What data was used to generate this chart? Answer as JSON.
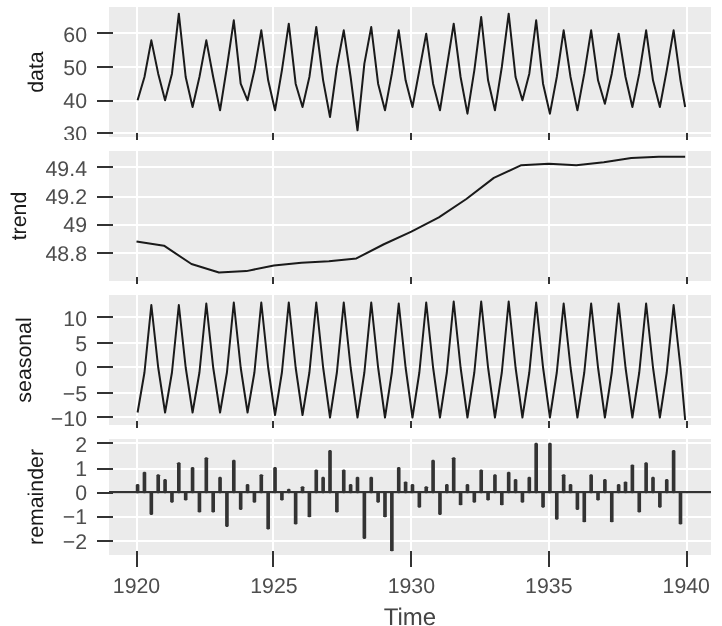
{
  "chart_data": [
    {
      "type": "line",
      "ylabel": "data",
      "color": "#1a1a1a",
      "grid": true,
      "tick_labels": "y",
      "xlim": [
        1919,
        1940.9
      ],
      "xticks": [
        1920,
        1925,
        1930,
        1935,
        1940
      ],
      "ylim": [
        29,
        68
      ],
      "yticks": [
        30,
        40,
        50,
        60
      ],
      "x": [
        1920.04,
        1920.29,
        1920.54,
        1920.79,
        1921.04,
        1921.29,
        1921.54,
        1921.79,
        1922.04,
        1922.29,
        1922.54,
        1922.79,
        1923.04,
        1923.29,
        1923.54,
        1923.79,
        1924.04,
        1924.29,
        1924.54,
        1924.79,
        1925.04,
        1925.29,
        1925.54,
        1925.79,
        1926.04,
        1926.29,
        1926.54,
        1926.79,
        1927.04,
        1927.29,
        1927.54,
        1927.79,
        1928.04,
        1928.29,
        1928.54,
        1928.79,
        1929.04,
        1929.29,
        1929.54,
        1929.79,
        1930.04,
        1930.29,
        1930.54,
        1930.79,
        1931.04,
        1931.29,
        1931.54,
        1931.79,
        1932.04,
        1932.29,
        1932.54,
        1932.79,
        1933.04,
        1933.29,
        1933.54,
        1933.79,
        1934.04,
        1934.29,
        1934.54,
        1934.79,
        1935.04,
        1935.29,
        1935.54,
        1935.79,
        1936.04,
        1936.29,
        1936.54,
        1936.79,
        1937.04,
        1937.29,
        1937.54,
        1937.79,
        1938.04,
        1938.29,
        1938.54,
        1938.79,
        1939.04,
        1939.29,
        1939.54,
        1939.79,
        1939.96
      ],
      "values": [
        40,
        47,
        58,
        48,
        40,
        48,
        66,
        47,
        38,
        47,
        58,
        47,
        37,
        50,
        64,
        45,
        40,
        49,
        61,
        46,
        37,
        49,
        63,
        45,
        38,
        47,
        62,
        46,
        35,
        50,
        61,
        47,
        31,
        51,
        62,
        45,
        37,
        48,
        61,
        46,
        38,
        49,
        60,
        45,
        37,
        50,
        63,
        47,
        36,
        49,
        65,
        46,
        37,
        50,
        66,
        47,
        40,
        48,
        64,
        45,
        36,
        47,
        61,
        47,
        37,
        48,
        61,
        46,
        39,
        48,
        60,
        47,
        38,
        48,
        61,
        46,
        38,
        49,
        61,
        46,
        38
      ]
    },
    {
      "type": "line",
      "ylabel": "trend",
      "color": "#1a1a1a",
      "grid": true,
      "tick_labels": "y",
      "xlim": [
        1919,
        1940.9
      ],
      "xticks": [
        1920,
        1925,
        1930,
        1935,
        1940
      ],
      "ylim": [
        48.6,
        49.52
      ],
      "yticks": [
        48.8,
        49.0,
        49.2,
        49.4
      ],
      "x": [
        1920,
        1921,
        1922,
        1923,
        1924,
        1925,
        1926,
        1927,
        1928,
        1929,
        1930,
        1931,
        1932,
        1933,
        1934,
        1935,
        1936,
        1937,
        1938,
        1939,
        1939.96
      ],
      "values": [
        48.88,
        48.85,
        48.72,
        48.66,
        48.67,
        48.71,
        48.73,
        48.74,
        48.76,
        48.86,
        48.95,
        49.05,
        49.18,
        49.33,
        49.42,
        49.43,
        49.42,
        49.44,
        49.47,
        49.48,
        49.48
      ]
    },
    {
      "type": "line",
      "ylabel": "seasonal",
      "color": "#1a1a1a",
      "grid": true,
      "tick_labels": "y",
      "xlim": [
        1919,
        1940.9
      ],
      "xticks": [
        1920,
        1925,
        1930,
        1935,
        1940
      ],
      "ylim": [
        -11.5,
        14.5
      ],
      "yticks": [
        -10,
        -5,
        0,
        5,
        10
      ],
      "x": [
        1920.04,
        1920.29,
        1920.54,
        1920.79,
        1921.04,
        1921.29,
        1921.54,
        1921.79,
        1922.04,
        1922.29,
        1922.54,
        1922.79,
        1923.04,
        1923.29,
        1923.54,
        1923.79,
        1924.04,
        1924.29,
        1924.54,
        1924.79,
        1925.04,
        1925.29,
        1925.54,
        1925.79,
        1926.04,
        1926.29,
        1926.54,
        1926.79,
        1927.04,
        1927.29,
        1927.54,
        1927.79,
        1928.04,
        1928.29,
        1928.54,
        1928.79,
        1929.04,
        1929.29,
        1929.54,
        1929.79,
        1930.04,
        1930.29,
        1930.54,
        1930.79,
        1931.04,
        1931.29,
        1931.54,
        1931.79,
        1932.04,
        1932.29,
        1932.54,
        1932.79,
        1933.04,
        1933.29,
        1933.54,
        1933.79,
        1934.04,
        1934.29,
        1934.54,
        1934.79,
        1935.04,
        1935.29,
        1935.54,
        1935.79,
        1936.04,
        1936.29,
        1936.54,
        1936.79,
        1937.04,
        1937.29,
        1937.54,
        1937.79,
        1938.04,
        1938.29,
        1938.54,
        1938.79,
        1939.04,
        1939.29,
        1939.54,
        1939.79,
        1939.96
      ],
      "values": [
        -9,
        -1,
        12.5,
        0,
        -9,
        -1,
        12.5,
        0,
        -9,
        -1,
        12.8,
        0,
        -9,
        -1,
        13,
        0,
        -9,
        -1,
        13,
        0,
        -9.5,
        -1,
        13,
        0,
        -9.5,
        -1,
        13,
        0,
        -10,
        -1,
        13,
        0,
        -10,
        -1,
        13,
        0,
        -10,
        -1,
        12.8,
        0,
        -10,
        -1,
        13,
        0,
        -10,
        -1,
        13.2,
        0,
        -10,
        -1,
        13.2,
        0,
        -10,
        -1,
        13.2,
        0,
        -10,
        -1,
        13,
        0,
        -10,
        -1,
        12.8,
        0,
        -10,
        -1,
        12.8,
        0,
        -10,
        -1,
        12.8,
        0,
        -10,
        -1,
        12.8,
        0,
        -10,
        -1,
        12.5,
        0,
        -10.5
      ]
    },
    {
      "type": "bar",
      "ylabel": "remainder",
      "xlabel": "Time",
      "color": "#333333",
      "grid": true,
      "xlim": [
        1919,
        1940.9
      ],
      "xticks": [
        1920,
        1925,
        1930,
        1935,
        1940
      ],
      "ylim": [
        -2.6,
        2.2
      ],
      "yticks": [
        -2,
        -1,
        0,
        1,
        2
      ],
      "ref_lines": [
        {
          "axis": "y",
          "value": 0
        }
      ],
      "x": [
        1920.04,
        1920.29,
        1920.54,
        1920.79,
        1921.04,
        1921.29,
        1921.54,
        1921.79,
        1922.04,
        1922.29,
        1922.54,
        1922.79,
        1923.04,
        1923.29,
        1923.54,
        1923.79,
        1924.04,
        1924.29,
        1924.54,
        1924.79,
        1925.04,
        1925.29,
        1925.54,
        1925.79,
        1926.04,
        1926.29,
        1926.54,
        1926.79,
        1927.04,
        1927.29,
        1927.54,
        1927.79,
        1928.04,
        1928.29,
        1928.54,
        1928.79,
        1929.04,
        1929.29,
        1929.54,
        1929.79,
        1930.04,
        1930.29,
        1930.54,
        1930.79,
        1931.04,
        1931.29,
        1931.54,
        1931.79,
        1932.04,
        1932.29,
        1932.54,
        1932.79,
        1933.04,
        1933.29,
        1933.54,
        1933.79,
        1934.04,
        1934.29,
        1934.54,
        1934.79,
        1935.04,
        1935.29,
        1935.54,
        1935.79,
        1936.04,
        1936.29,
        1936.54,
        1936.79,
        1937.04,
        1937.29,
        1937.54,
        1937.79,
        1938.04,
        1938.29,
        1938.54,
        1938.79,
        1939.04,
        1939.29,
        1939.54,
        1939.79
      ],
      "values": [
        0.3,
        0.8,
        -0.9,
        0.7,
        0.5,
        -0.4,
        1.2,
        -0.3,
        1.0,
        -0.8,
        1.4,
        -0.8,
        0.6,
        -1.4,
        1.3,
        -0.7,
        0.3,
        -0.4,
        0.7,
        -1.5,
        1.0,
        -0.3,
        0.1,
        -1.3,
        0.2,
        -1.0,
        0.9,
        0.6,
        1.7,
        -0.8,
        0.9,
        0.3,
        0.6,
        -1.9,
        0.6,
        -0.4,
        -1.0,
        -2.4,
        1.0,
        0.4,
        0.3,
        -0.6,
        0.2,
        1.3,
        -0.9,
        0.3,
        1.4,
        -0.5,
        0.3,
        -0.4,
        0.9,
        -0.3,
        0.7,
        -0.5,
        0.8,
        0.5,
        -0.4,
        0.6,
        2.0,
        -0.6,
        2.0,
        -1.1,
        0.7,
        0.3,
        -0.7,
        -1.2,
        0.7,
        -0.3,
        0.5,
        -1.2,
        0.3,
        0.4,
        1.1,
        -0.8,
        1.2,
        0.6,
        -0.6,
        0.5,
        1.7,
        -1.3
      ]
    }
  ]
}
